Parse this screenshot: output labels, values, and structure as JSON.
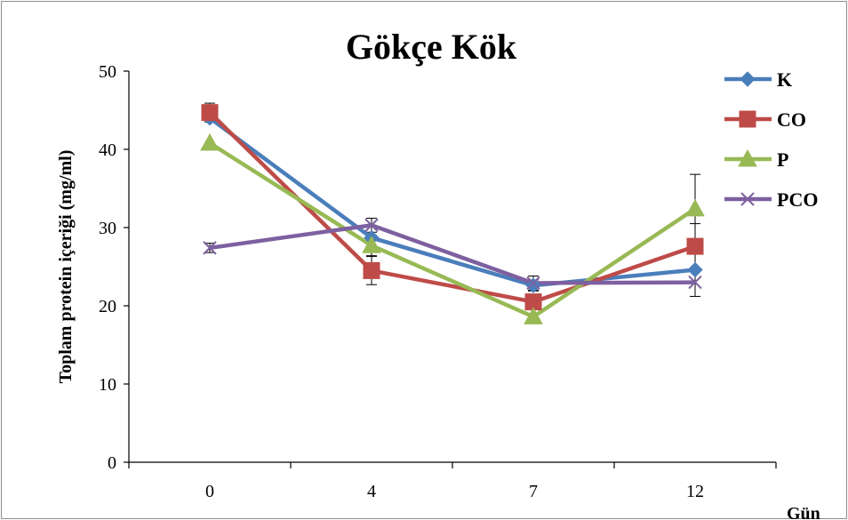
{
  "chart_data": {
    "type": "line",
    "title": "Gökçe Kök",
    "xlabel": "Gün",
    "ylabel": "Toplam protein içeriği (mg/ml)",
    "categories": [
      "0",
      "4",
      "7",
      "12"
    ],
    "ylim": [
      0,
      50
    ],
    "yticks": [
      0,
      10,
      20,
      30,
      40,
      50
    ],
    "grid": false,
    "legend_position": "right",
    "series": [
      {
        "name": "K",
        "color": "#4a7ebb",
        "marker": "diamond",
        "values": [
          44.0,
          28.7,
          22.6,
          24.6
        ],
        "errors": [
          0.0,
          0.0,
          0.7,
          0.0
        ]
      },
      {
        "name": "CO",
        "color": "#be4b48",
        "marker": "square",
        "values": [
          44.7,
          24.5,
          20.5,
          27.6
        ],
        "errors": [
          1.2,
          1.8,
          0.0,
          2.9
        ]
      },
      {
        "name": "P",
        "color": "#98b954",
        "marker": "triangle",
        "values": [
          40.8,
          27.7,
          18.6,
          32.4
        ],
        "errors": [
          0.0,
          1.3,
          0.0,
          4.4
        ]
      },
      {
        "name": "PCO",
        "color": "#7d60a0",
        "marker": "x",
        "values": [
          27.4,
          30.3,
          22.9,
          23.0
        ],
        "errors": [
          0.6,
          0.9,
          0.9,
          1.8
        ]
      }
    ]
  }
}
